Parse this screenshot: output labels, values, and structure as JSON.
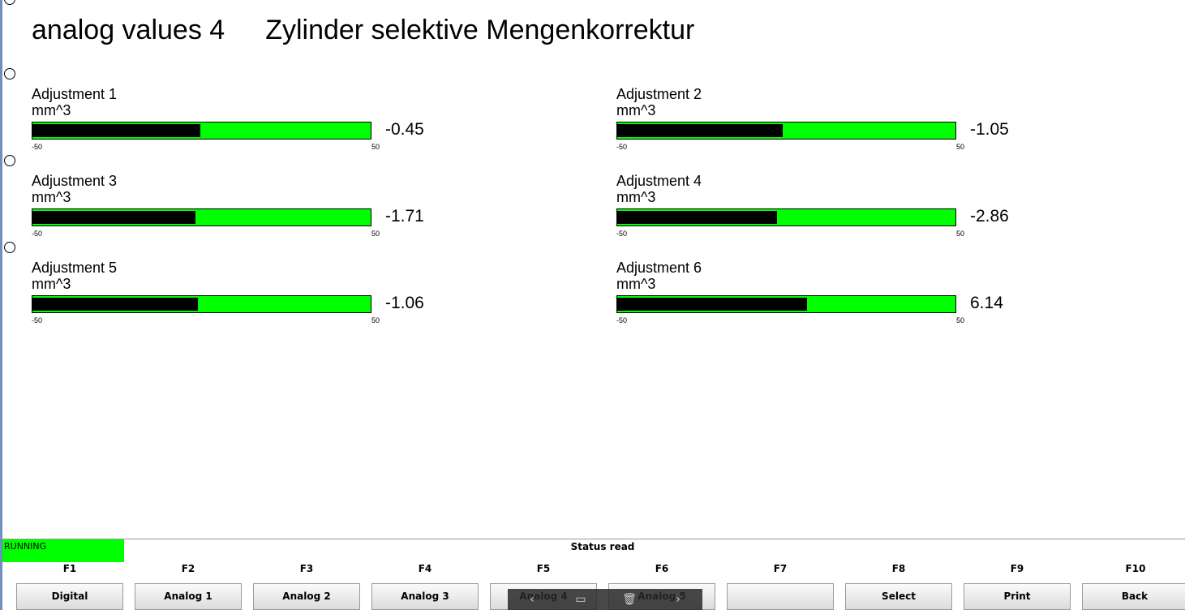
{
  "header": {
    "screen": "analog values 4",
    "subtitle": "Zylinder selektive Mengenkorrektur"
  },
  "gauges": [
    {
      "name": "Adjustment 1",
      "unit": "mm^3",
      "min": "-50",
      "max": "50",
      "value": "-0.45",
      "level": -0.45
    },
    {
      "name": "Adjustment 2",
      "unit": "mm^3",
      "min": "-50",
      "max": "50",
      "value": "-1.05",
      "level": -1.05
    },
    {
      "name": "Adjustment 3",
      "unit": "mm^3",
      "min": "-50",
      "max": "50",
      "value": "-1.71",
      "level": -1.71
    },
    {
      "name": "Adjustment 4",
      "unit": "mm^3",
      "min": "-50",
      "max": "50",
      "value": "-2.86",
      "level": -2.86
    },
    {
      "name": "Adjustment 5",
      "unit": "mm^3",
      "min": "-50",
      "max": "50",
      "value": "-1.06",
      "level": -1.06
    },
    {
      "name": "Adjustment 6",
      "unit": "mm^3",
      "min": "-50",
      "max": "50",
      "value": "6.14",
      "level": 6.14
    }
  ],
  "colors": {
    "bar_background": "#00ff00",
    "bar_fill": "#000000",
    "status_running": "#00ff00"
  },
  "status": {
    "state": "RUNNING",
    "message": "Status read"
  },
  "function_keys": [
    {
      "key": "F1",
      "label": "Digital"
    },
    {
      "key": "F2",
      "label": "Analog 1"
    },
    {
      "key": "F3",
      "label": "Analog 2"
    },
    {
      "key": "F4",
      "label": "Analog 3"
    },
    {
      "key": "F5",
      "label": "Analog 4"
    },
    {
      "key": "F6",
      "label": "Analog 5"
    },
    {
      "key": "F7",
      "label": ""
    },
    {
      "key": "F8",
      "label": "Select"
    },
    {
      "key": "F9",
      "label": "Print"
    },
    {
      "key": "F10",
      "label": "Back"
    }
  ],
  "overlay_toolbar": {
    "icons": [
      "chevron-left-icon",
      "monitor-icon",
      "trash-icon",
      "chevron-right-icon"
    ]
  }
}
